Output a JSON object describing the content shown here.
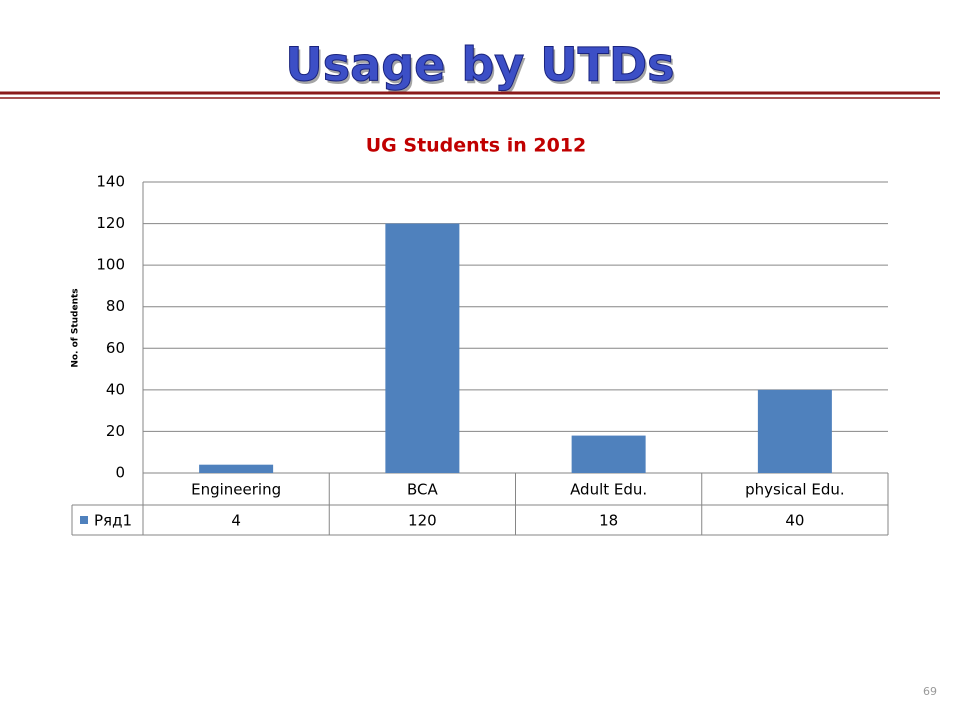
{
  "slide_title": "Usage by UTDs",
  "page_number": "69",
  "chart_data": {
    "type": "bar",
    "title": "UG Students in 2012",
    "y_label": "No. of Students",
    "categories": [
      "Engineering",
      "BCA",
      "Adult Edu.",
      "physical Edu."
    ],
    "series": [
      {
        "name": "Ряд1",
        "color": "#4f81bd",
        "values": [
          4,
          120,
          18,
          40
        ]
      }
    ],
    "ylim": [
      0,
      140
    ],
    "yticks": [
      0,
      20,
      40,
      60,
      80,
      100,
      120,
      140
    ],
    "grid": true,
    "data_table": true
  }
}
